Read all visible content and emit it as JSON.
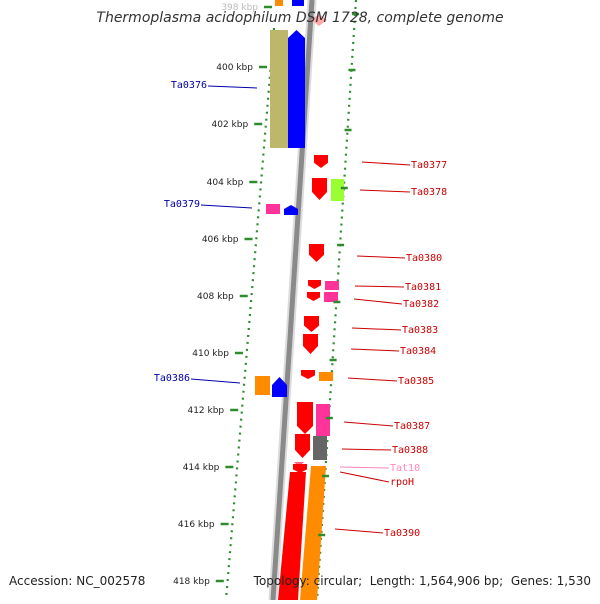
{
  "title": "Thermoplasma acidophilum DSM 1728, complete genome",
  "footer": {
    "accession_label": "Accession:",
    "accession": "NC_002578",
    "topology_label": "Topology:",
    "topology": "circular",
    "length_label": "Length:",
    "length": "1,564,906 bp",
    "genes_label": "Genes:",
    "genes": "1,530"
  },
  "ticks": [
    {
      "label": "398 kbp",
      "faded": true
    },
    {
      "label": "400 kbp"
    },
    {
      "label": "402 kbp"
    },
    {
      "label": "404 kbp"
    },
    {
      "label": "406 kbp"
    },
    {
      "label": "408 kbp"
    },
    {
      "label": "410 kbp"
    },
    {
      "label": "412 kbp"
    },
    {
      "label": "414 kbp"
    },
    {
      "label": "416 kbp"
    },
    {
      "label": "418 kbp"
    }
  ],
  "colors": {
    "cds": "#ff0000",
    "cds_blue": "#0000ff",
    "trna": "#ff3399",
    "orange": "#ff8c00",
    "olive": "#bdb76b",
    "green": "#99ff33",
    "gray": "#666666",
    "axis": "#888888",
    "dots": "#2e8b2e",
    "label_right": "#cc0000",
    "label_left": "#0000aa",
    "label_trna": "#ff88bb"
  },
  "genes": [
    {
      "label": "Ta0376",
      "side": "left",
      "color": "olive"
    },
    {
      "label": "Ta0379",
      "side": "left",
      "color": "trna"
    },
    {
      "label": "Ta0386",
      "side": "left",
      "color": "orange"
    },
    {
      "label": "Ta0377",
      "side": "right",
      "color": "cds"
    },
    {
      "label": "Ta0378",
      "side": "right",
      "color": "green"
    },
    {
      "label": "Ta0380",
      "side": "right",
      "color": "cds"
    },
    {
      "label": "Ta0381",
      "side": "right",
      "color": "trna"
    },
    {
      "label": "Ta0382",
      "side": "right",
      "color": "trna"
    },
    {
      "label": "Ta0383",
      "side": "right",
      "color": "cds"
    },
    {
      "label": "Ta0384",
      "side": "right",
      "color": "cds"
    },
    {
      "label": "Ta0385",
      "side": "right",
      "color": "orange"
    },
    {
      "label": "Ta0387",
      "side": "right",
      "color": "trna"
    },
    {
      "label": "Ta0388",
      "side": "right",
      "color": "gray"
    },
    {
      "label": "Tat10",
      "side": "right",
      "color": "trna"
    },
    {
      "label": "rpoH",
      "side": "right",
      "color": "cds"
    },
    {
      "label": "Ta0390",
      "side": "right",
      "color": "orange"
    }
  ]
}
